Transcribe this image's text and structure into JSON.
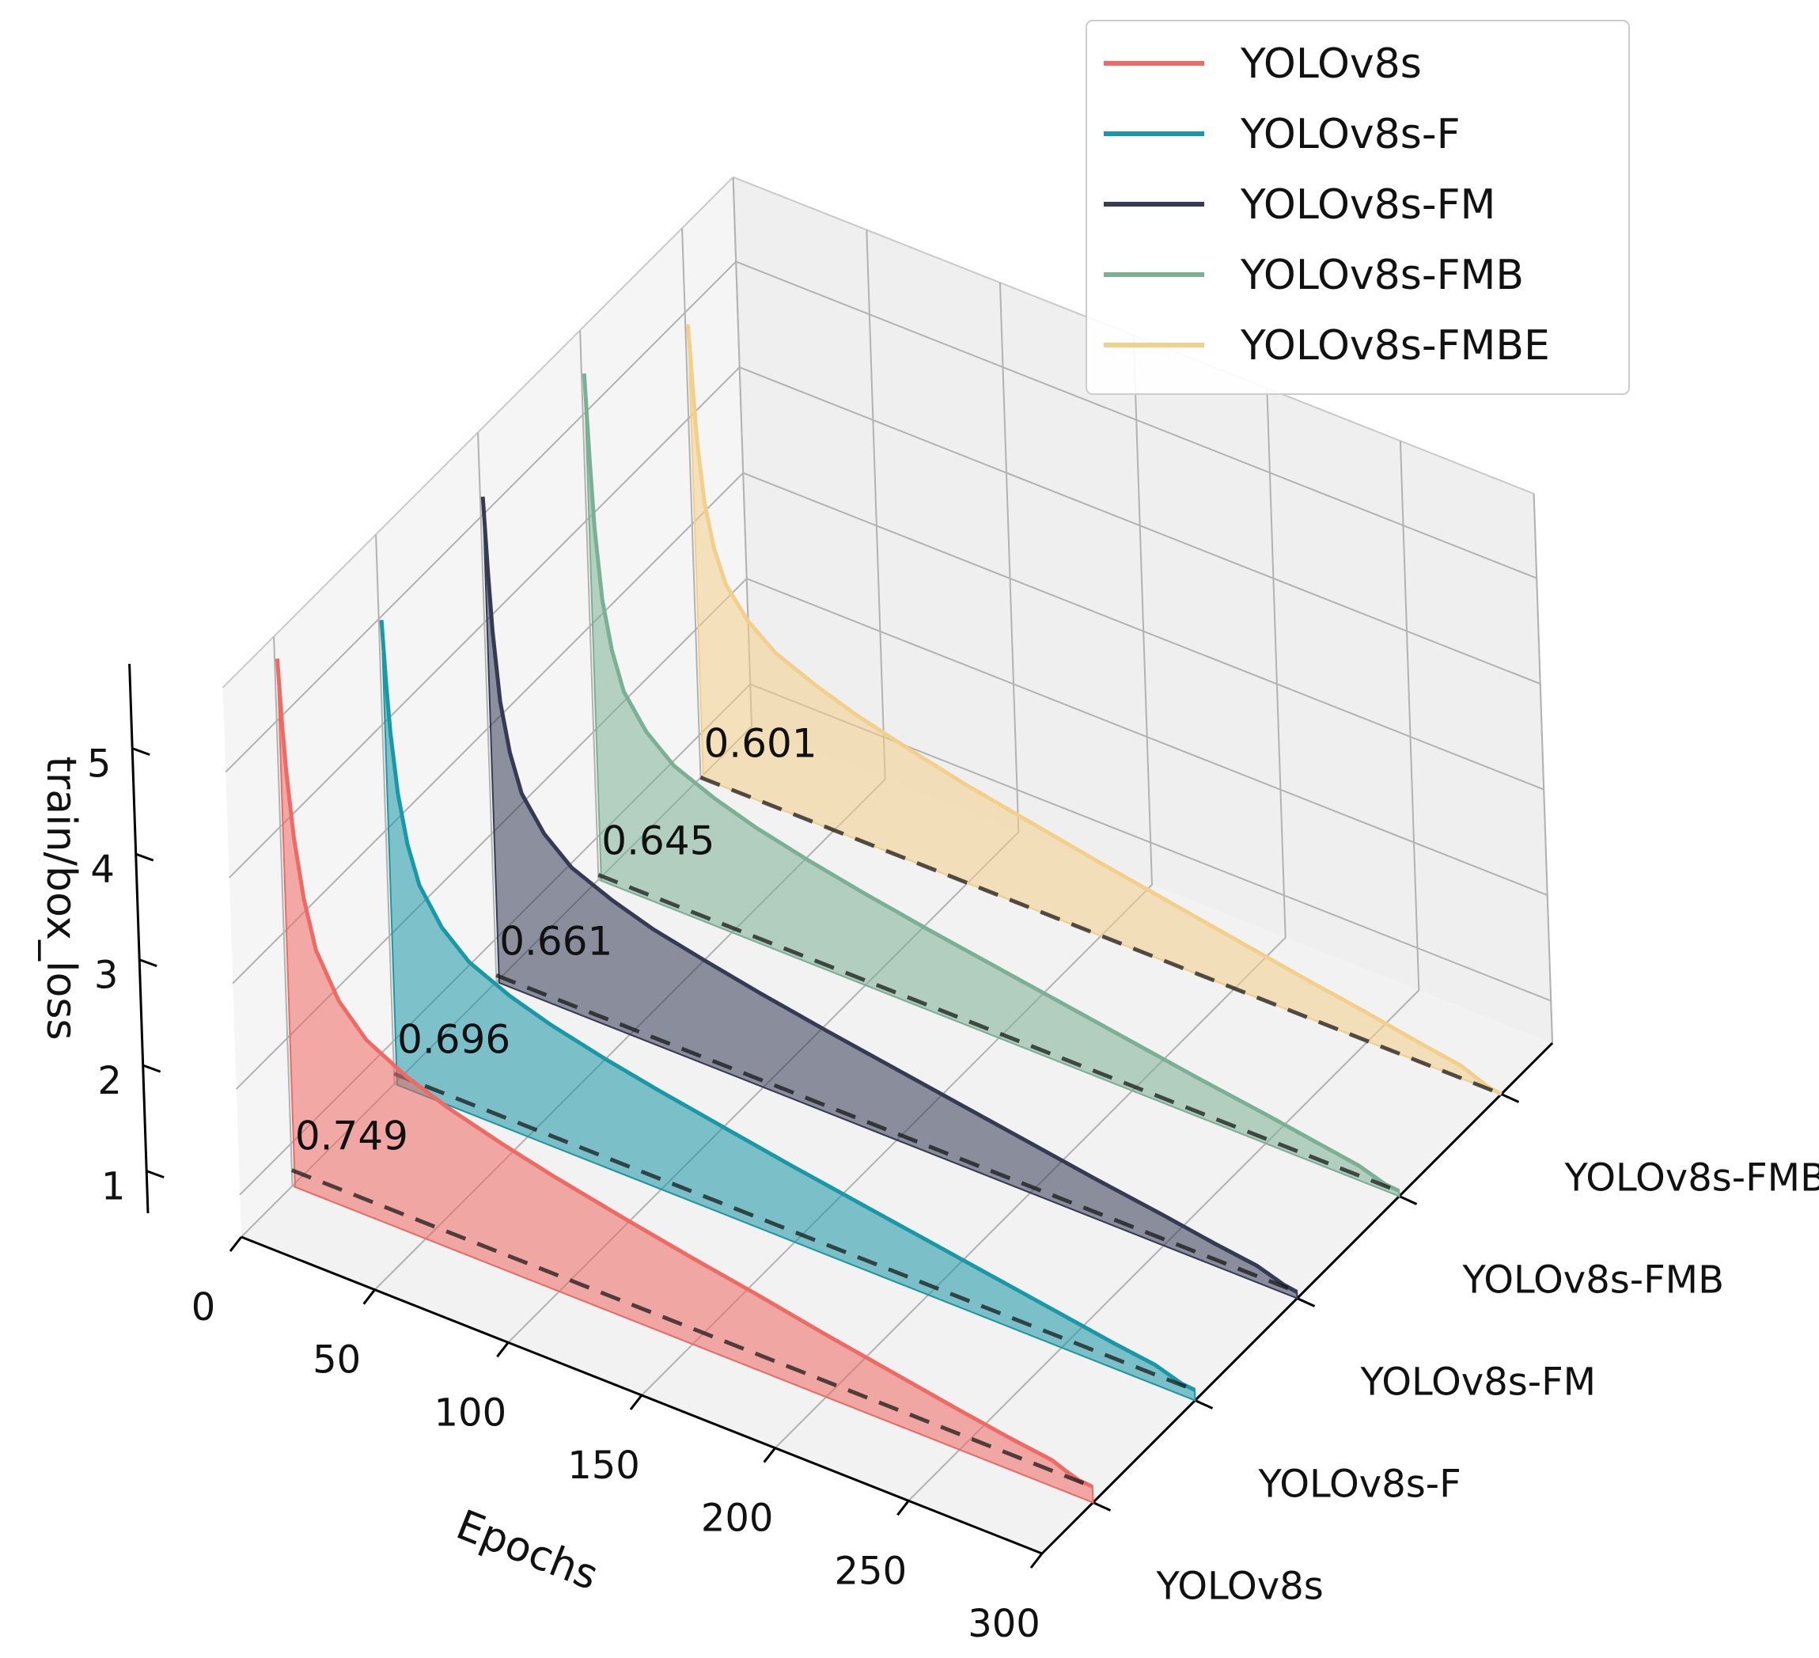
{
  "chart_data": {
    "type": "line",
    "subtype": "3d-waterfall-filled",
    "title": "",
    "xlabel": "Epochs",
    "ylabel": "",
    "zlabel": "train/box_loss",
    "xlim": [
      0,
      300
    ],
    "zlim": [
      0.6,
      5.8
    ],
    "x_ticks": [
      "0",
      "50",
      "100",
      "150",
      "200",
      "250",
      "300"
    ],
    "z_ticks": [
      "1",
      "2",
      "3",
      "4",
      "5"
    ],
    "y_categories": [
      "YOLOv8s",
      "YOLOv8s-F",
      "YOLOv8s-FM",
      "YOLOv8s-FMB",
      "YOLOv8s-FMBE"
    ],
    "legend_position": "top-right",
    "grid": true,
    "x": [
      1,
      2,
      3,
      5,
      8,
      12,
      20,
      30,
      45,
      60,
      80,
      100,
      125,
      150,
      175,
      200,
      225,
      250,
      270,
      285,
      290,
      295,
      300
    ],
    "series": [
      {
        "name": "YOLOv8s",
        "color": "#ee6a64",
        "final_value_label": "0.749",
        "final_value": 0.749,
        "values": [
          5.6,
          5.0,
          4.55,
          3.95,
          3.4,
          2.95,
          2.55,
          2.28,
          2.08,
          1.94,
          1.8,
          1.68,
          1.55,
          1.43,
          1.32,
          1.2,
          1.09,
          0.98,
          0.9,
          0.85,
          0.8,
          0.76,
          0.75
        ]
      },
      {
        "name": "YOLOv8s-F",
        "color": "#1a98a6",
        "final_value_label": "0.696",
        "final_value": 0.696,
        "values": [
          5.0,
          4.4,
          3.95,
          3.4,
          2.95,
          2.6,
          2.28,
          2.05,
          1.88,
          1.76,
          1.64,
          1.54,
          1.43,
          1.32,
          1.22,
          1.12,
          1.02,
          0.92,
          0.84,
          0.79,
          0.75,
          0.71,
          0.7
        ]
      },
      {
        "name": "YOLOv8s-FM",
        "color": "#353a55",
        "final_value_label": "0.661",
        "final_value": 0.661,
        "values": [
          5.2,
          4.5,
          3.95,
          3.3,
          2.85,
          2.5,
          2.2,
          1.98,
          1.82,
          1.7,
          1.59,
          1.49,
          1.38,
          1.28,
          1.18,
          1.08,
          0.98,
          0.89,
          0.81,
          0.76,
          0.72,
          0.68,
          0.66
        ]
      },
      {
        "name": "YOLOv8s-FMB",
        "color": "#7cb095",
        "final_value_label": "0.645",
        "final_value": 0.645,
        "values": [
          5.4,
          4.6,
          3.95,
          3.3,
          2.85,
          2.5,
          2.2,
          1.98,
          1.82,
          1.7,
          1.58,
          1.48,
          1.37,
          1.27,
          1.17,
          1.07,
          0.97,
          0.88,
          0.8,
          0.74,
          0.7,
          0.66,
          0.65
        ]
      },
      {
        "name": "YOLOv8s-FMBE",
        "color": "#f3cf8c",
        "final_value_label": "0.601",
        "final_value": 0.601,
        "values": [
          4.9,
          4.3,
          3.8,
          3.25,
          2.85,
          2.55,
          2.28,
          2.08,
          1.92,
          1.79,
          1.66,
          1.54,
          1.42,
          1.3,
          1.19,
          1.08,
          0.97,
          0.87,
          0.78,
          0.72,
          0.67,
          0.62,
          0.6
        ]
      }
    ]
  }
}
